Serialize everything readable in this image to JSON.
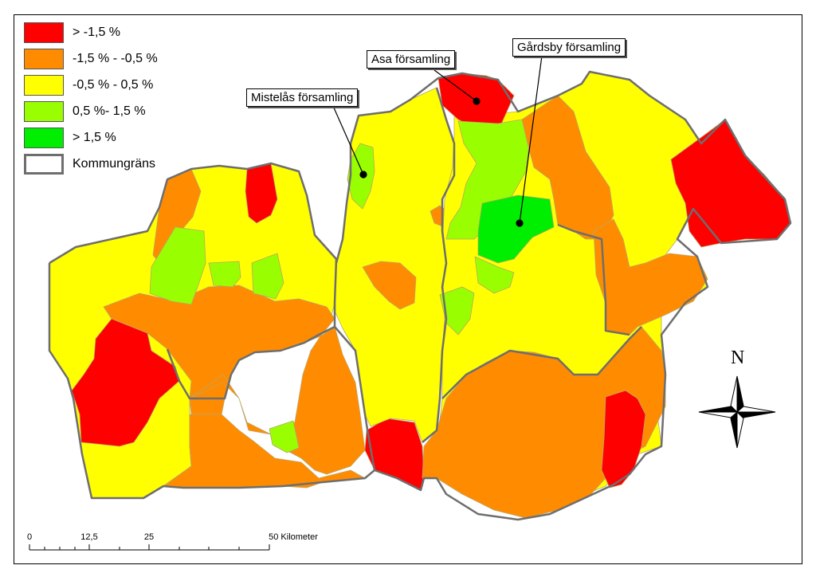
{
  "legend": {
    "items": [
      {
        "label": "> -1,5 %",
        "color": "#ff0000"
      },
      {
        "label": "-1,5 % - -0,5 %",
        "color": "#ff8c00"
      },
      {
        "label": "-0,5 % - 0,5 %",
        "color": "#ffff00"
      },
      {
        "label": "0,5 %- 1,5 %",
        "color": "#99ff00"
      },
      {
        "label": "> 1,5 %",
        "color": "#00ee00"
      }
    ],
    "boundary_label": "Kommungräns",
    "boundary_color": "#6e6e6e"
  },
  "callouts": {
    "asa": "Asa församling",
    "gardsby": "Gårdsby församling",
    "mistelas": "Mistelås församling"
  },
  "scale_bar": {
    "ticks": [
      "0",
      "12,5",
      "25",
      "50 Kilometer"
    ]
  },
  "north_arrow": {
    "label": "N"
  }
}
